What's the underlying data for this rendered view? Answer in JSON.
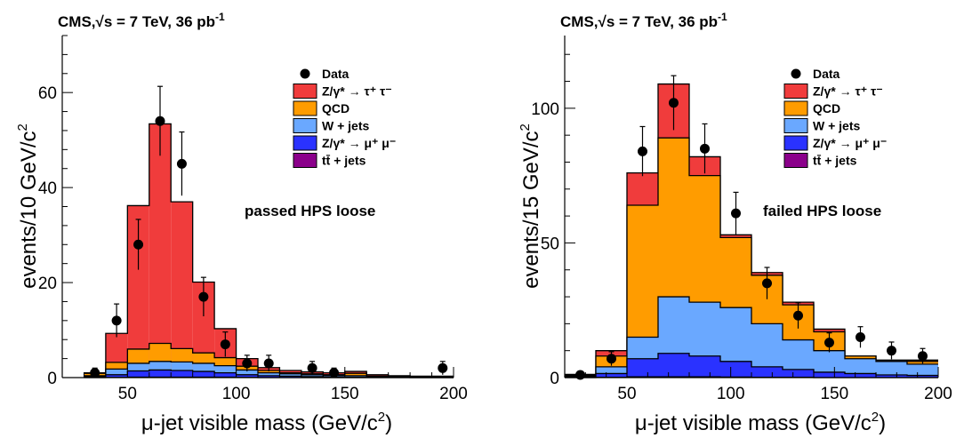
{
  "colors": {
    "ztautau": "#f03c3c",
    "qcd": "#ff9c00",
    "wjets": "#6aa8ff",
    "zmumu": "#2a32ff",
    "ttbar": "#8b008b",
    "data": "#000000"
  },
  "chart_data": [
    {
      "type": "bar",
      "title": "CMS,√s = 7 TeV, 36 pb",
      "title_sup": "-1",
      "annotation": "passed HPS loose",
      "xlabel": "μ-jet visible mass (GeV/c",
      "xlabel_sup": "2",
      "xlabel_end": ")",
      "ylabel": "events/10 GeV/c",
      "ylabel_sup": "2",
      "xlim": [
        20,
        200
      ],
      "ylim": [
        0,
        72
      ],
      "xticks": [
        50,
        100,
        150,
        200
      ],
      "yticks": [
        0,
        20,
        40,
        60
      ],
      "bin_edges": [
        30,
        40,
        50,
        60,
        70,
        80,
        90,
        100,
        110,
        120,
        130,
        140,
        150,
        160,
        170,
        180,
        190,
        200
      ],
      "legend": [
        {
          "key": "data",
          "label": "Data"
        },
        {
          "key": "ztautau",
          "label": "Z/γ* → τ⁺ τ⁻"
        },
        {
          "key": "qcd",
          "label": "QCD"
        },
        {
          "key": "wjets",
          "label": "W + jets"
        },
        {
          "key": "zmumu",
          "label": "Z/γ* → μ⁺ μ⁻"
        },
        {
          "key": "ttbar",
          "label": "tt̄ + jets"
        }
      ],
      "stack_cumulative": {
        "ttbar": [
          0,
          0.05,
          0.1,
          0.1,
          0.1,
          0.1,
          0.1,
          0.05,
          0,
          0,
          0,
          0,
          0,
          0,
          0,
          0,
          0
        ],
        "zmumu": [
          0.2,
          0.6,
          1.4,
          1.6,
          1.5,
          1.3,
          1.0,
          0.6,
          0.4,
          0.3,
          0.2,
          0.1,
          0.1,
          0.05,
          0.05,
          0,
          0
        ],
        "wjets": [
          0.4,
          1.8,
          3.0,
          3.4,
          3.3,
          3.0,
          2.5,
          1.6,
          1.0,
          0.8,
          0.6,
          0.4,
          0.4,
          0.2,
          0.2,
          0.1,
          0.1
        ],
        "qcd": [
          0.9,
          3.2,
          6.0,
          7.2,
          6.1,
          5.2,
          4.2,
          2.4,
          1.5,
          1.0,
          0.8,
          0.6,
          0.9,
          0.3,
          0.3,
          0.2,
          0.2
        ],
        "ztautau": [
          1.0,
          9.3,
          36.2,
          53.4,
          37.0,
          20.1,
          10.3,
          4.0,
          2.1,
          1.5,
          1.2,
          1.0,
          1.3,
          0.6,
          0.4,
          0.3,
          0.3
        ]
      },
      "data_points": [
        {
          "x": 35,
          "y": 1,
          "err": 1.0
        },
        {
          "x": 45,
          "y": 12,
          "err": 3.5
        },
        {
          "x": 55,
          "y": 28,
          "err": 5.3
        },
        {
          "x": 65,
          "y": 54,
          "err": 7.3
        },
        {
          "x": 75,
          "y": 45,
          "err": 6.7
        },
        {
          "x": 85,
          "y": 17,
          "err": 4.1
        },
        {
          "x": 95,
          "y": 7,
          "err": 2.6
        },
        {
          "x": 105,
          "y": 3,
          "err": 1.7
        },
        {
          "x": 115,
          "y": 3,
          "err": 1.7
        },
        {
          "x": 135,
          "y": 2,
          "err": 1.4
        },
        {
          "x": 145,
          "y": 1,
          "err": 1.0
        },
        {
          "x": 195,
          "y": 2,
          "err": 1.4
        }
      ]
    },
    {
      "type": "bar",
      "title": "CMS,√s = 7 TeV, 36 pb",
      "title_sup": "-1",
      "annotation": "failed HPS loose",
      "xlabel": "μ-jet visible mass (GeV/c",
      "xlabel_sup": "2",
      "xlabel_end": ")",
      "ylabel": "events/15 GeV/c",
      "ylabel_sup": "2",
      "xlim": [
        20,
        200
      ],
      "ylim": [
        0,
        127
      ],
      "xticks": [
        50,
        100,
        150,
        200
      ],
      "yticks": [
        0,
        50,
        100
      ],
      "bin_edges": [
        20,
        35,
        50,
        65,
        80,
        95,
        110,
        125,
        140,
        155,
        170,
        185,
        200
      ],
      "legend": [
        {
          "key": "data",
          "label": "Data"
        },
        {
          "key": "ztautau",
          "label": "Z/γ* → τ⁺ τ⁻"
        },
        {
          "key": "qcd",
          "label": "QCD"
        },
        {
          "key": "wjets",
          "label": "W + jets"
        },
        {
          "key": "zmumu",
          "label": "Z/γ* → μ⁺ μ⁻"
        },
        {
          "key": "ttbar",
          "label": "tt̄ + jets"
        }
      ],
      "stack_cumulative": {
        "ttbar": [
          0,
          0.1,
          0.3,
          0.3,
          0.3,
          0.2,
          0.1,
          0.1,
          0,
          0,
          0,
          0
        ],
        "zmumu": [
          0.3,
          1.5,
          7.0,
          9.0,
          8.0,
          6.0,
          4.0,
          3.0,
          2.0,
          1.5,
          1.0,
          0.8
        ],
        "wjets": [
          0.6,
          4.0,
          15.0,
          30.0,
          28.0,
          26.0,
          20.0,
          14.0,
          10.0,
          7.0,
          6.0,
          5.0
        ],
        "qcd": [
          1.0,
          8.0,
          64.0,
          89.0,
          75.0,
          52.0,
          38.0,
          27.0,
          17.0,
          8.0,
          6.0,
          6.0
        ],
        "ztautau": [
          1.2,
          10.0,
          76.0,
          109.0,
          82.0,
          53.0,
          39.0,
          28.0,
          18.0,
          8.0,
          6.5,
          6.5
        ]
      },
      "data_points": [
        {
          "x": 27.5,
          "y": 1,
          "err": 1.0
        },
        {
          "x": 42.5,
          "y": 7,
          "err": 2.6
        },
        {
          "x": 57.5,
          "y": 84,
          "err": 9.2
        },
        {
          "x": 72.5,
          "y": 102,
          "err": 10.1
        },
        {
          "x": 87.5,
          "y": 85,
          "err": 9.2
        },
        {
          "x": 102.5,
          "y": 61,
          "err": 7.8
        },
        {
          "x": 117.5,
          "y": 35,
          "err": 5.9
        },
        {
          "x": 132.5,
          "y": 23,
          "err": 4.8
        },
        {
          "x": 147.5,
          "y": 13,
          "err": 3.6
        },
        {
          "x": 162.5,
          "y": 15,
          "err": 3.9
        },
        {
          "x": 177.5,
          "y": 10,
          "err": 3.2
        },
        {
          "x": 192.5,
          "y": 8,
          "err": 2.8
        }
      ]
    }
  ]
}
